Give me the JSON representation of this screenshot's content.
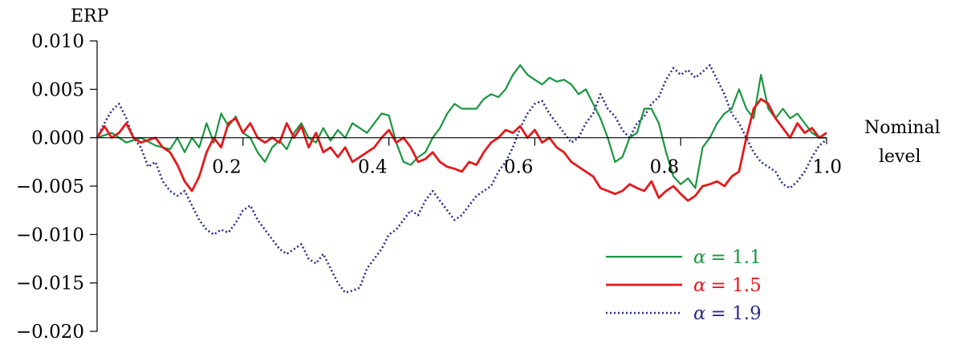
{
  "chart_data": {
    "type": "line",
    "ylabel": "ERP",
    "xlabel_lines": [
      "Nominal",
      "level"
    ],
    "xlim": [
      0.0,
      1.0
    ],
    "ylim": [
      -0.02,
      0.01
    ],
    "x_ticks": [
      0.2,
      0.4,
      0.6,
      0.8
    ],
    "x_tick_labels": [
      "0.2",
      "0.4",
      "0.6",
      "0.8"
    ],
    "x_end_label": "1.0",
    "y_ticks": [
      0.01,
      0.005,
      0.0,
      -0.005,
      -0.01,
      -0.015,
      -0.02
    ],
    "y_tick_labels": [
      "0.010",
      "0.005",
      "0.000",
      "−0.005",
      "−0.010",
      "−0.015",
      "−0.020"
    ],
    "grid": false,
    "legend_position": "bottom-right",
    "series": [
      {
        "name": "α = 1.1",
        "symbol": "α",
        "value_text": "= 1.1",
        "color": "#1a9641",
        "dash": "solid",
        "points": [
          [
            0.0,
            0.0
          ],
          [
            0.02,
            0.0005
          ],
          [
            0.04,
            -0.0005
          ],
          [
            0.06,
            0.0
          ],
          [
            0.08,
            -0.0008
          ],
          [
            0.1,
            -0.0012
          ],
          [
            0.11,
            0.0
          ],
          [
            0.12,
            -0.0015
          ],
          [
            0.13,
            0.0
          ],
          [
            0.14,
            -0.001
          ],
          [
            0.15,
            0.0015
          ],
          [
            0.16,
            -0.0005
          ],
          [
            0.17,
            0.0025
          ],
          [
            0.18,
            0.0012
          ],
          [
            0.19,
            0.0022
          ],
          [
            0.2,
            0.0005
          ],
          [
            0.21,
            0.0
          ],
          [
            0.22,
            -0.0015
          ],
          [
            0.23,
            -0.0025
          ],
          [
            0.24,
            -0.001
          ],
          [
            0.25,
            -0.0003
          ],
          [
            0.26,
            -0.0012
          ],
          [
            0.27,
            0.0005
          ],
          [
            0.28,
            0.0015
          ],
          [
            0.29,
            0.0
          ],
          [
            0.3,
            -0.0005
          ],
          [
            0.31,
            0.001
          ],
          [
            0.32,
            -0.0003
          ],
          [
            0.33,
            0.0008
          ],
          [
            0.34,
            0.0
          ],
          [
            0.35,
            0.0015
          ],
          [
            0.36,
            0.001
          ],
          [
            0.37,
            0.0005
          ],
          [
            0.38,
            0.0015
          ],
          [
            0.39,
            0.0025
          ],
          [
            0.4,
            0.0023
          ],
          [
            0.41,
            -0.0005
          ],
          [
            0.42,
            -0.0025
          ],
          [
            0.43,
            -0.0028
          ],
          [
            0.44,
            -0.002
          ],
          [
            0.45,
            -0.0015
          ],
          [
            0.46,
            0.0
          ],
          [
            0.47,
            0.001
          ],
          [
            0.48,
            0.0025
          ],
          [
            0.49,
            0.0035
          ],
          [
            0.5,
            0.003
          ],
          [
            0.52,
            0.003
          ],
          [
            0.53,
            0.004
          ],
          [
            0.54,
            0.0045
          ],
          [
            0.55,
            0.0042
          ],
          [
            0.56,
            0.005
          ],
          [
            0.57,
            0.0065
          ],
          [
            0.58,
            0.0075
          ],
          [
            0.59,
            0.0065
          ],
          [
            0.6,
            0.006
          ],
          [
            0.61,
            0.0055
          ],
          [
            0.62,
            0.0062
          ],
          [
            0.63,
            0.0058
          ],
          [
            0.64,
            0.006
          ],
          [
            0.65,
            0.0055
          ],
          [
            0.66,
            0.0045
          ],
          [
            0.67,
            0.005
          ],
          [
            0.68,
            0.0035
          ],
          [
            0.69,
            0.002
          ],
          [
            0.7,
            0.0
          ],
          [
            0.71,
            -0.0025
          ],
          [
            0.72,
            -0.002
          ],
          [
            0.73,
            0.0
          ],
          [
            0.74,
            0.0005
          ],
          [
            0.75,
            0.003
          ],
          [
            0.76,
            0.003
          ],
          [
            0.77,
            0.0015
          ],
          [
            0.78,
            -0.0015
          ],
          [
            0.79,
            -0.004
          ],
          [
            0.8,
            -0.0048
          ],
          [
            0.81,
            -0.0042
          ],
          [
            0.82,
            -0.0052
          ],
          [
            0.83,
            -0.001
          ],
          [
            0.84,
            0.0
          ],
          [
            0.85,
            0.0015
          ],
          [
            0.86,
            0.0025
          ],
          [
            0.87,
            0.003
          ],
          [
            0.88,
            0.005
          ],
          [
            0.89,
            0.003
          ],
          [
            0.9,
            0.002
          ],
          [
            0.91,
            0.0065
          ],
          [
            0.92,
            0.003
          ],
          [
            0.93,
            0.002
          ],
          [
            0.94,
            0.003
          ],
          [
            0.95,
            0.002
          ],
          [
            0.96,
            0.0025
          ],
          [
            0.97,
            0.0015
          ],
          [
            0.98,
            0.0005
          ],
          [
            0.99,
            0.0
          ],
          [
            1.0,
            0.0
          ]
        ]
      },
      {
        "name": "α = 1.5",
        "symbol": "α",
        "value_text": "= 1.5",
        "color": "#e31a1c",
        "dash": "solid",
        "points": [
          [
            0.0,
            0.0
          ],
          [
            0.01,
            0.0012
          ],
          [
            0.02,
            0.0
          ],
          [
            0.03,
            0.0005
          ],
          [
            0.04,
            0.0015
          ],
          [
            0.05,
            0.0
          ],
          [
            0.06,
            -0.0005
          ],
          [
            0.08,
            0.0
          ],
          [
            0.09,
            -0.001
          ],
          [
            0.1,
            -0.0015
          ],
          [
            0.11,
            -0.0028
          ],
          [
            0.12,
            -0.0045
          ],
          [
            0.13,
            -0.0055
          ],
          [
            0.14,
            -0.004
          ],
          [
            0.15,
            -0.0015
          ],
          [
            0.16,
            0.0
          ],
          [
            0.17,
            -0.001
          ],
          [
            0.18,
            0.0015
          ],
          [
            0.19,
            0.002
          ],
          [
            0.2,
            0.0005
          ],
          [
            0.21,
            0.0015
          ],
          [
            0.22,
            0.0
          ],
          [
            0.23,
            -0.0005
          ],
          [
            0.24,
            0.0
          ],
          [
            0.25,
            -0.0005
          ],
          [
            0.26,
            0.0015
          ],
          [
            0.27,
            0.0
          ],
          [
            0.28,
            0.0012
          ],
          [
            0.29,
            -0.001
          ],
          [
            0.3,
            0.0005
          ],
          [
            0.31,
            -0.0015
          ],
          [
            0.32,
            -0.001
          ],
          [
            0.33,
            -0.002
          ],
          [
            0.34,
            -0.001
          ],
          [
            0.35,
            -0.0025
          ],
          [
            0.36,
            -0.002
          ],
          [
            0.37,
            -0.0015
          ],
          [
            0.38,
            -0.001
          ],
          [
            0.39,
            0.0
          ],
          [
            0.4,
            0.0008
          ],
          [
            0.41,
            -0.0005
          ],
          [
            0.42,
            0.0
          ],
          [
            0.43,
            -0.001
          ],
          [
            0.44,
            -0.0025
          ],
          [
            0.45,
            -0.0022
          ],
          [
            0.46,
            -0.0015
          ],
          [
            0.47,
            -0.0025
          ],
          [
            0.48,
            -0.003
          ],
          [
            0.49,
            -0.0032
          ],
          [
            0.5,
            -0.0035
          ],
          [
            0.51,
            -0.0025
          ],
          [
            0.52,
            -0.0028
          ],
          [
            0.53,
            -0.0015
          ],
          [
            0.54,
            -0.0005
          ],
          [
            0.55,
            0.0
          ],
          [
            0.56,
            0.0008
          ],
          [
            0.57,
            0.0005
          ],
          [
            0.58,
            0.0012
          ],
          [
            0.59,
            0.0
          ],
          [
            0.6,
            0.0008
          ],
          [
            0.61,
            -0.0005
          ],
          [
            0.62,
            0.0
          ],
          [
            0.63,
            -0.001
          ],
          [
            0.64,
            -0.0015
          ],
          [
            0.65,
            -0.0025
          ],
          [
            0.66,
            -0.003
          ],
          [
            0.67,
            -0.0035
          ],
          [
            0.68,
            -0.004
          ],
          [
            0.69,
            -0.0052
          ],
          [
            0.7,
            -0.0055
          ],
          [
            0.71,
            -0.0058
          ],
          [
            0.72,
            -0.0055
          ],
          [
            0.73,
            -0.0048
          ],
          [
            0.74,
            -0.0052
          ],
          [
            0.75,
            -0.0055
          ],
          [
            0.76,
            -0.0045
          ],
          [
            0.77,
            -0.0062
          ],
          [
            0.78,
            -0.0055
          ],
          [
            0.79,
            -0.005
          ],
          [
            0.8,
            -0.0058
          ],
          [
            0.81,
            -0.0065
          ],
          [
            0.82,
            -0.006
          ],
          [
            0.83,
            -0.005
          ],
          [
            0.84,
            -0.0048
          ],
          [
            0.85,
            -0.0045
          ],
          [
            0.86,
            -0.005
          ],
          [
            0.87,
            -0.004
          ],
          [
            0.88,
            -0.0035
          ],
          [
            0.89,
            0.0
          ],
          [
            0.9,
            0.003
          ],
          [
            0.91,
            0.004
          ],
          [
            0.92,
            0.0035
          ],
          [
            0.93,
            0.002
          ],
          [
            0.94,
            0.001
          ],
          [
            0.95,
            0.0
          ],
          [
            0.96,
            0.0015
          ],
          [
            0.97,
            0.0005
          ],
          [
            0.98,
            0.001
          ],
          [
            0.99,
            0.0
          ],
          [
            1.0,
            0.0005
          ]
        ]
      },
      {
        "name": "α = 1.9",
        "symbol": "α",
        "value_text": "= 1.9",
        "color": "#2c2d8a",
        "dash": "dotted",
        "points": [
          [
            0.0,
            0.0
          ],
          [
            0.01,
            0.0015
          ],
          [
            0.02,
            0.0028
          ],
          [
            0.03,
            0.0035
          ],
          [
            0.04,
            0.002
          ],
          [
            0.05,
            0.0
          ],
          [
            0.06,
            -0.001
          ],
          [
            0.07,
            -0.003
          ],
          [
            0.08,
            -0.0025
          ],
          [
            0.09,
            -0.0045
          ],
          [
            0.1,
            -0.0055
          ],
          [
            0.11,
            -0.006
          ],
          [
            0.12,
            -0.0055
          ],
          [
            0.13,
            -0.007
          ],
          [
            0.14,
            -0.0085
          ],
          [
            0.15,
            -0.0095
          ],
          [
            0.16,
            -0.01
          ],
          [
            0.17,
            -0.0095
          ],
          [
            0.18,
            -0.0098
          ],
          [
            0.19,
            -0.0088
          ],
          [
            0.2,
            -0.0075
          ],
          [
            0.21,
            -0.007
          ],
          [
            0.22,
            -0.0085
          ],
          [
            0.23,
            -0.0095
          ],
          [
            0.24,
            -0.0105
          ],
          [
            0.25,
            -0.0115
          ],
          [
            0.26,
            -0.012
          ],
          [
            0.27,
            -0.0115
          ],
          [
            0.28,
            -0.011
          ],
          [
            0.29,
            -0.0125
          ],
          [
            0.3,
            -0.013
          ],
          [
            0.31,
            -0.012
          ],
          [
            0.32,
            -0.0135
          ],
          [
            0.33,
            -0.015
          ],
          [
            0.34,
            -0.016
          ],
          [
            0.35,
            -0.0158
          ],
          [
            0.36,
            -0.0155
          ],
          [
            0.37,
            -0.0135
          ],
          [
            0.38,
            -0.0125
          ],
          [
            0.39,
            -0.0115
          ],
          [
            0.4,
            -0.01
          ],
          [
            0.41,
            -0.0095
          ],
          [
            0.42,
            -0.0085
          ],
          [
            0.43,
            -0.0075
          ],
          [
            0.44,
            -0.008
          ],
          [
            0.45,
            -0.0065
          ],
          [
            0.46,
            -0.0055
          ],
          [
            0.47,
            -0.0065
          ],
          [
            0.48,
            -0.0075
          ],
          [
            0.49,
            -0.0085
          ],
          [
            0.5,
            -0.008
          ],
          [
            0.51,
            -0.007
          ],
          [
            0.52,
            -0.006
          ],
          [
            0.53,
            -0.0055
          ],
          [
            0.54,
            -0.005
          ],
          [
            0.55,
            -0.0035
          ],
          [
            0.56,
            -0.0025
          ],
          [
            0.57,
            -0.001
          ],
          [
            0.58,
            0.001
          ],
          [
            0.59,
            0.0025
          ],
          [
            0.6,
            0.0035
          ],
          [
            0.61,
            0.0038
          ],
          [
            0.62,
            0.0025
          ],
          [
            0.63,
            0.0015
          ],
          [
            0.64,
            0.0005
          ],
          [
            0.65,
            -0.0005
          ],
          [
            0.66,
            0.0
          ],
          [
            0.67,
            0.0015
          ],
          [
            0.68,
            0.0025
          ],
          [
            0.69,
            0.0045
          ],
          [
            0.7,
            0.003
          ],
          [
            0.71,
            0.0022
          ],
          [
            0.72,
            0.0008
          ],
          [
            0.73,
            0.0
          ],
          [
            0.74,
            0.0015
          ],
          [
            0.75,
            0.0022
          ],
          [
            0.76,
            0.0035
          ],
          [
            0.77,
            0.0042
          ],
          [
            0.78,
            0.006
          ],
          [
            0.79,
            0.0072
          ],
          [
            0.8,
            0.0065
          ],
          [
            0.81,
            0.007
          ],
          [
            0.82,
            0.0062
          ],
          [
            0.83,
            0.0068
          ],
          [
            0.84,
            0.0075
          ],
          [
            0.85,
            0.006
          ],
          [
            0.86,
            0.0045
          ],
          [
            0.87,
            0.0025
          ],
          [
            0.88,
            0.0015
          ],
          [
            0.89,
            0.0
          ],
          [
            0.9,
            -0.0015
          ],
          [
            0.91,
            -0.0025
          ],
          [
            0.92,
            -0.003
          ],
          [
            0.93,
            -0.0035
          ],
          [
            0.94,
            -0.0048
          ],
          [
            0.95,
            -0.0052
          ],
          [
            0.96,
            -0.0045
          ],
          [
            0.97,
            -0.0035
          ],
          [
            0.98,
            -0.002
          ],
          [
            0.99,
            -0.0008
          ],
          [
            1.0,
            -0.0002
          ]
        ]
      }
    ]
  }
}
